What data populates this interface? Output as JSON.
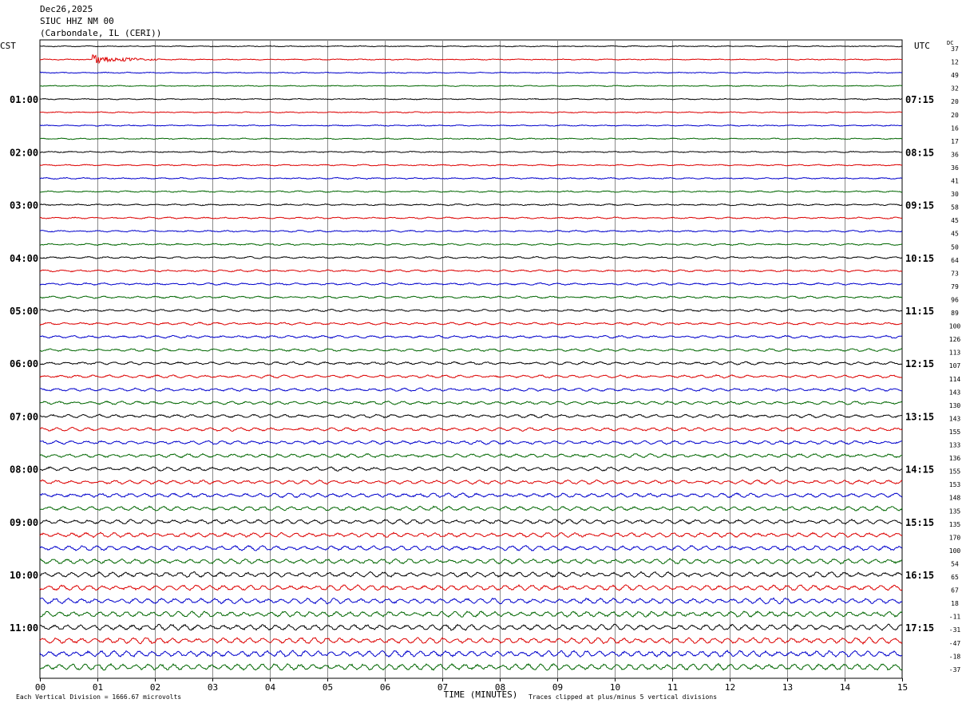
{
  "header": {
    "date": "Dec26,2025",
    "station": "SIUC HHZ NM 00",
    "location": "(Carbondale, IL (CERI))"
  },
  "chart_data": {
    "type": "line",
    "title": "SIUC HHZ NM 00",
    "left_timezone": "CST",
    "right_timezone": "UTC",
    "dc_label": "DC",
    "xlabel": "TIME (MINUTES)",
    "xlim": [
      0,
      15
    ],
    "x_ticks": [
      "00",
      "01",
      "02",
      "03",
      "04",
      "05",
      "06",
      "07",
      "08",
      "09",
      "10",
      "11",
      "12",
      "13",
      "14",
      "15"
    ],
    "left_hour_labels": [
      "01:00",
      "02:00",
      "03:00",
      "04:00",
      "05:00",
      "06:00",
      "07:00",
      "08:00",
      "09:00",
      "10:00",
      "11:00"
    ],
    "right_hour_labels": [
      "07:15",
      "08:15",
      "09:15",
      "10:15",
      "11:15",
      "12:15",
      "13:15",
      "14:15",
      "15:15",
      "16:15",
      "17:15"
    ],
    "dc_offsets": [
      37,
      12,
      49,
      32,
      20,
      20,
      16,
      17,
      36,
      36,
      41,
      30,
      58,
      45,
      45,
      50,
      64,
      73,
      79,
      96,
      89,
      100,
      126,
      113,
      107,
      114,
      143,
      130,
      143,
      155,
      133,
      136,
      155,
      153,
      148,
      135,
      135,
      170,
      100,
      54,
      65,
      67,
      18,
      -11,
      -31,
      -47,
      -18,
      -37
    ],
    "trace_colors": [
      "#000000",
      "#dd0000",
      "#0000cc",
      "#006600"
    ],
    "footer_left": "Each Vertical Division = 1666.67 microvolts",
    "footer_right": "Traces clipped at plus/minus 5 vertical divisions",
    "trace_count": 48,
    "trace_minutes": 15
  }
}
